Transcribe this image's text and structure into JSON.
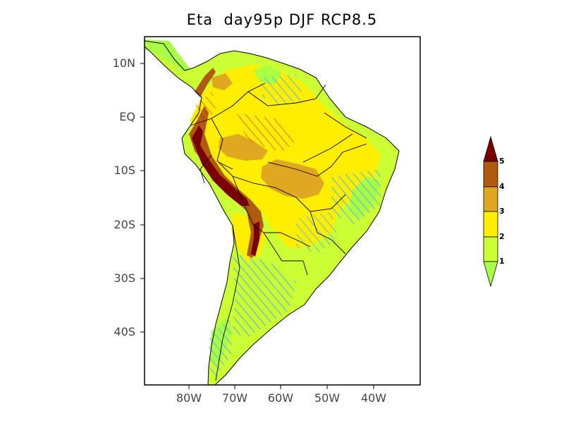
{
  "title": "Eta  day95p DJF RCP8.5",
  "axes": {
    "lat_ticks": [
      "10N",
      "EQ",
      "10S",
      "20S",
      "30S",
      "40S"
    ],
    "lon_ticks": [
      "80W",
      "70W",
      "60W",
      "50W",
      "40W"
    ]
  },
  "colorbar": {
    "levels": [
      "1",
      "2",
      "3",
      "4",
      "5"
    ],
    "colors": {
      "below_1": "#aaff44",
      "1_2": "#ccff33",
      "2_3": "#ffee00",
      "3_4": "#e0a820",
      "4_5": "#b05a10",
      "above_5": "#7a0000"
    }
  },
  "hatch_color": "#55b8e0",
  "hatch_red_color": "#ff5533"
}
